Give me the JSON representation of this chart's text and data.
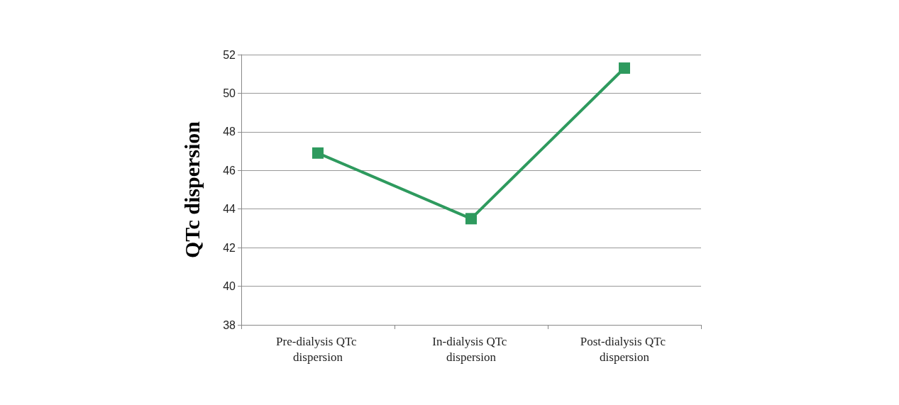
{
  "chart_data": {
    "type": "line",
    "ylabel": "QTc dispersion",
    "categories": [
      "Pre-dialysis QTc dispersion",
      "In-dialysis QTc dispersion",
      "Post-dialysis QTc dispersion"
    ],
    "series": [
      {
        "color": "#2e9a5e",
        "values": [
          46.9,
          43.5,
          51.3
        ]
      }
    ],
    "ylim": [
      38,
      52
    ],
    "yticks": [
      38,
      40,
      42,
      44,
      46,
      48,
      50,
      52
    ],
    "grid": "y",
    "marker": "square",
    "line_style": "solid"
  }
}
